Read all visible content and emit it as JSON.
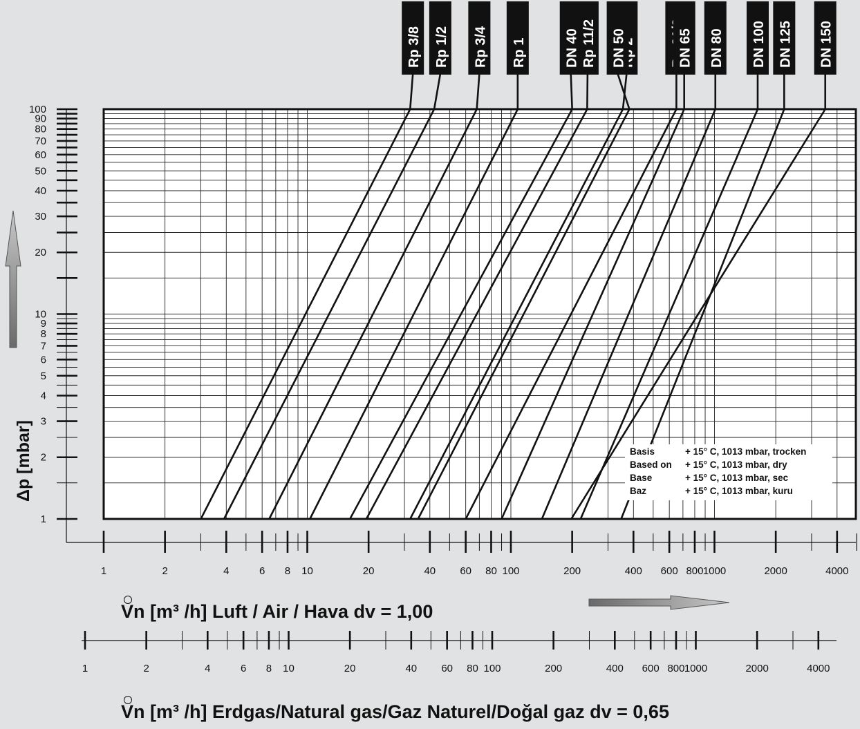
{
  "chart_data": {
    "type": "line",
    "x_scale": "log",
    "y_scale": "log",
    "xlim": [
      1,
      5000
    ],
    "ylim": [
      1,
      100
    ],
    "grid": true,
    "ylabel": "Δp [mbar]",
    "y_ticks": [
      1,
      2,
      3,
      4,
      5,
      6,
      7,
      8,
      9,
      10,
      20,
      30,
      40,
      50,
      60,
      70,
      80,
      90,
      100
    ],
    "x_ticks_air": [
      1,
      2,
      4,
      6,
      8,
      10,
      20,
      40,
      60,
      80,
      100,
      200,
      400,
      600,
      800,
      1000,
      2000,
      4000
    ],
    "x_ticks_gas": [
      1,
      2,
      4,
      6,
      8,
      10,
      20,
      40,
      60,
      80,
      100,
      200,
      400,
      600,
      800,
      1000,
      2000,
      4000
    ],
    "xlabel_air": "Vn [m³ /h] Luft / Air / Hava dv = 1,00",
    "xlabel_gas": "Vn [m³ /h] Erdgas/Natural gas/Gaz Naturel/Doğal gaz dv = 0,65",
    "series": [
      {
        "name": "Rp 3/8",
        "x_at_1mbar": 3.0,
        "x_at_100mbar": 32,
        "tag_x": 33
      },
      {
        "name": "Rp 1/2",
        "x_at_1mbar": 3.9,
        "x_at_100mbar": 42,
        "tag_x": 45
      },
      {
        "name": "Rp 3/4",
        "x_at_1mbar": 6.5,
        "x_at_100mbar": 68,
        "tag_x": 70
      },
      {
        "name": "Rp 1",
        "x_at_1mbar": 10.3,
        "x_at_100mbar": 108,
        "tag_x": 108
      },
      {
        "name": "DN 40",
        "x_at_1mbar": 16.2,
        "x_at_100mbar": 200,
        "tag_x": 197
      },
      {
        "name": "Rp 11/2",
        "x_at_1mbar": 19.5,
        "x_at_100mbar": 237,
        "tag_x": 238
      },
      {
        "name": "Rp 2",
        "x_at_1mbar": 32,
        "x_at_100mbar": 355,
        "tag_x": 370
      },
      {
        "name": "DN 50",
        "x_at_1mbar": 35,
        "x_at_100mbar": 382,
        "tag_x": 335
      },
      {
        "name": "Rp 21/2",
        "x_at_1mbar": 60,
        "x_at_100mbar": 650,
        "tag_x": 650
      },
      {
        "name": "DN 65",
        "x_at_1mbar": 90,
        "x_at_100mbar": 710,
        "tag_x": 710
      },
      {
        "name": "DN 80",
        "x_at_1mbar": 142,
        "x_at_100mbar": 1010,
        "tag_x": 1010
      },
      {
        "name": "DN 100",
        "x_at_1mbar": 220,
        "x_at_100mbar": 1630,
        "tag_x": 1630
      },
      {
        "name": "DN 125",
        "x_at_1mbar": 348,
        "x_at_100mbar": 2200,
        "tag_x": 2200
      },
      {
        "name": "DN 150",
        "x_at_1mbar": 198,
        "x_at_100mbar": 3500,
        "tag_x": 3500
      }
    ],
    "legend": [
      {
        "key": "Basis",
        "value": "+ 15° C, 1013 mbar, trocken"
      },
      {
        "key": "Based on",
        "value": "+ 15° C, 1013 mbar, dry"
      },
      {
        "key": "Base",
        "value": "+ 15° C, 1013 mbar, sec"
      },
      {
        "key": "Baz",
        "value": "+ 15° C, 1013 mbar, kuru"
      }
    ],
    "legend_position": "bottom-right",
    "colors": {
      "background": "#e1e2e3",
      "plot": "#ffffff",
      "ink": "#111111",
      "arrow": "#888888"
    }
  }
}
